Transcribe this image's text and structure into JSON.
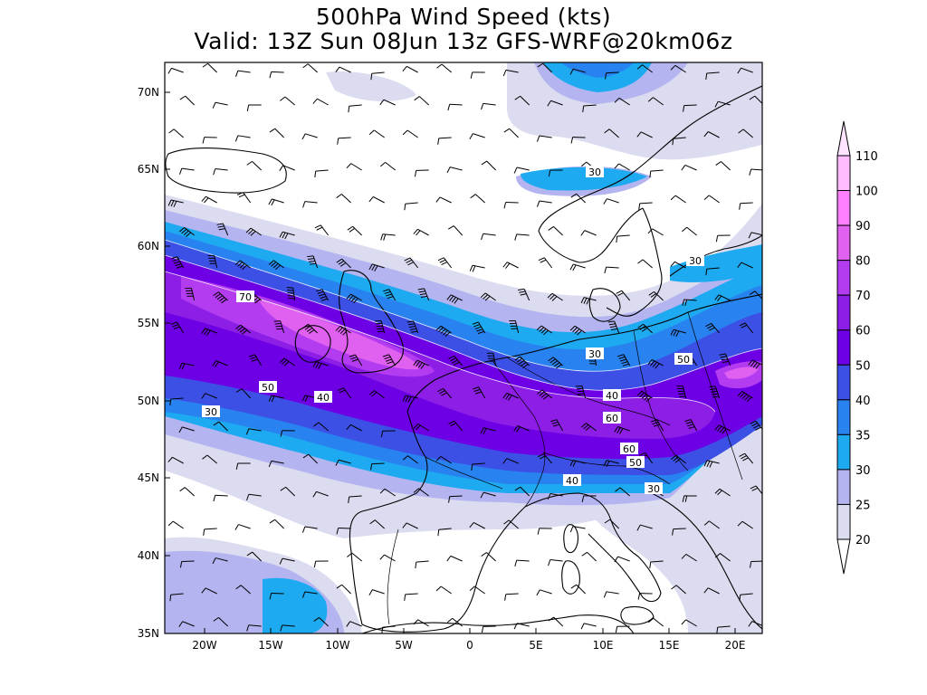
{
  "title": {
    "line1": "500hPa Wind Speed (kts)",
    "line2": "Valid: 13Z Sun 08Jun 13z GFS-WRF@20km06z"
  },
  "map": {
    "lat_ticks": [
      "70N",
      "65N",
      "60N",
      "55N",
      "50N",
      "45N",
      "40N",
      "35N"
    ],
    "lon_ticks": [
      "20W",
      "15W",
      "10W",
      "5W",
      "0",
      "5E",
      "10E",
      "15E",
      "20E"
    ],
    "contour_labels": [
      "70",
      "50",
      "40",
      "30",
      "30",
      "30",
      "50",
      "40",
      "60",
      "60",
      "50",
      "40",
      "30"
    ]
  },
  "colorbar": {
    "levels": [
      "110",
      "100",
      "90",
      "80",
      "70",
      "60",
      "50",
      "40",
      "35",
      "30",
      "25",
      "20"
    ],
    "colors": [
      "#ffe4ff",
      "#ffbcff",
      "#ff80ff",
      "#e060f0",
      "#b43cf0",
      "#8c1ee6",
      "#6e00e6",
      "#3c50e6",
      "#2882f0",
      "#1eaaf0",
      "#b4b4f0",
      "#dcdcf0"
    ]
  }
}
